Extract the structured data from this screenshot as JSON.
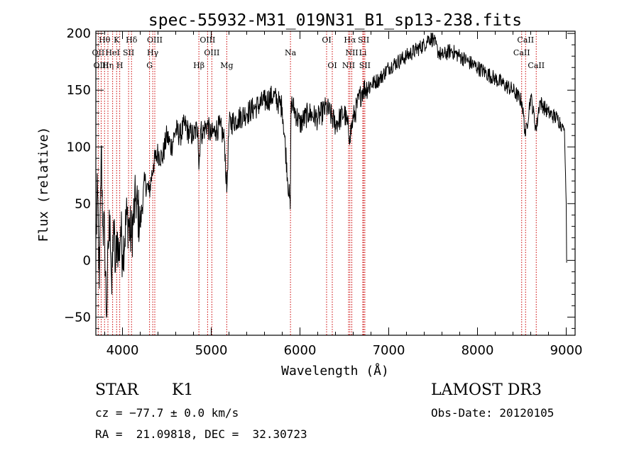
{
  "chart_data": {
    "type": "line",
    "title": "spec-55932-M31_019N31_B1_sp13-238.fits",
    "xlabel": "Wavelength (Å)",
    "ylabel": "Flux (relative)",
    "xlim": [
      3700,
      9100
    ],
    "ylim": [
      -66,
      202
    ],
    "xticks": [
      4000,
      5000,
      6000,
      7000,
      8000,
      9000
    ],
    "yticks": [
      -50,
      0,
      50,
      100,
      150,
      200
    ],
    "series": [
      {
        "name": "flux",
        "x": [
          3700,
          3720,
          3740,
          3760,
          3780,
          3800,
          3820,
          3840,
          3860,
          3880,
          3900,
          3920,
          3940,
          3960,
          3980,
          4000,
          4050,
          4100,
          4150,
          4200,
          4250,
          4300,
          4350,
          4400,
          4450,
          4500,
          4550,
          4600,
          4650,
          4700,
          4750,
          4800,
          4850,
          4861,
          4880,
          4900,
          4950,
          5000,
          5050,
          5100,
          5150,
          5175,
          5200,
          5300,
          5400,
          5500,
          5600,
          5700,
          5800,
          5890,
          5900,
          6000,
          6100,
          6200,
          6300,
          6400,
          6500,
          6563,
          6600,
          6700,
          6800,
          6900,
          7000,
          7100,
          7200,
          7300,
          7400,
          7450,
          7500,
          7550,
          7600,
          7700,
          7800,
          7900,
          8000,
          8100,
          8200,
          8300,
          8400,
          8500,
          8542,
          8600,
          8662,
          8700,
          8800,
          8900,
          8950,
          8980,
          9000,
          9005
        ],
        "values": [
          15,
          60,
          -25,
          100,
          30,
          20,
          -50,
          10,
          40,
          -30,
          35,
          -10,
          25,
          0,
          30,
          5,
          40,
          20,
          55,
          30,
          70,
          60,
          85,
          95,
          90,
          110,
          100,
          115,
          110,
          120,
          112,
          110,
          118,
          80,
          115,
          112,
          120,
          110,
          115,
          118,
          105,
          60,
          120,
          125,
          130,
          135,
          140,
          145,
          135,
          45,
          140,
          120,
          130,
          125,
          135,
          120,
          130,
          110,
          125,
          150,
          155,
          160,
          170,
          175,
          180,
          185,
          190,
          196,
          195,
          185,
          180,
          185,
          180,
          175,
          170,
          165,
          160,
          155,
          150,
          140,
          110,
          145,
          115,
          140,
          130,
          125,
          120,
          115,
          50,
          -2
        ]
      }
    ],
    "lines": [
      {
        "name": "Hθ",
        "wave": 3798,
        "row": 0
      },
      {
        "name": "OII",
        "wave": 3727,
        "row": 1
      },
      {
        "name": "OIII",
        "wave": 3760,
        "row": 2
      },
      {
        "name": "Hη",
        "wave": 3836,
        "row": 2
      },
      {
        "name": "K",
        "wave": 3934,
        "row": 0
      },
      {
        "name": "HeI",
        "wave": 3889,
        "row": 1
      },
      {
        "name": "H",
        "wave": 3969,
        "row": 2
      },
      {
        "name": "SII",
        "wave": 4069,
        "row": 1
      },
      {
        "name": "Hδ",
        "wave": 4102,
        "row": 0
      },
      {
        "name": "OIII",
        "wave": 4364,
        "row": 0
      },
      {
        "name": "Hγ",
        "wave": 4341,
        "row": 1
      },
      {
        "name": "G",
        "wave": 4305,
        "row": 2
      },
      {
        "name": "OIII",
        "wave": 4959,
        "row": 0
      },
      {
        "name": "OIII",
        "wave": 5007,
        "row": 1
      },
      {
        "name": "Hβ",
        "wave": 4861,
        "row": 2
      },
      {
        "name": "Mg",
        "wave": 5175,
        "row": 2
      },
      {
        "name": "Na",
        "wave": 5893,
        "row": 1
      },
      {
        "name": "OI",
        "wave": 6300,
        "row": 0
      },
      {
        "name": "OI",
        "wave": 6364,
        "row": 2
      },
      {
        "name": "Hα",
        "wave": 6563,
        "row": 0
      },
      {
        "name": "NII",
        "wave": 6584,
        "row": 1
      },
      {
        "name": "NII",
        "wave": 6548,
        "row": 2
      },
      {
        "name": "SII",
        "wave": 6717,
        "row": 0
      },
      {
        "name": "Li",
        "wave": 6708,
        "row": 1
      },
      {
        "name": "SII",
        "wave": 6731,
        "row": 2
      },
      {
        "name": "CaII",
        "wave": 8542,
        "row": 0
      },
      {
        "name": "CaII",
        "wave": 8498,
        "row": 1
      },
      {
        "name": "CaII",
        "wave": 8662,
        "row": 2
      }
    ],
    "colors": {
      "spectrum": "#000000",
      "lines": "#cc0000",
      "axes": "#000000"
    }
  },
  "info": {
    "class_text": "STAR",
    "subclass_text": "K1",
    "survey": "LAMOST DR3",
    "cz": "cz = −77.7 ± 0.0 km/s",
    "obs_date": "Obs-Date: 20120105",
    "coords": "RA =  21.09818, DEC =  32.30723"
  }
}
